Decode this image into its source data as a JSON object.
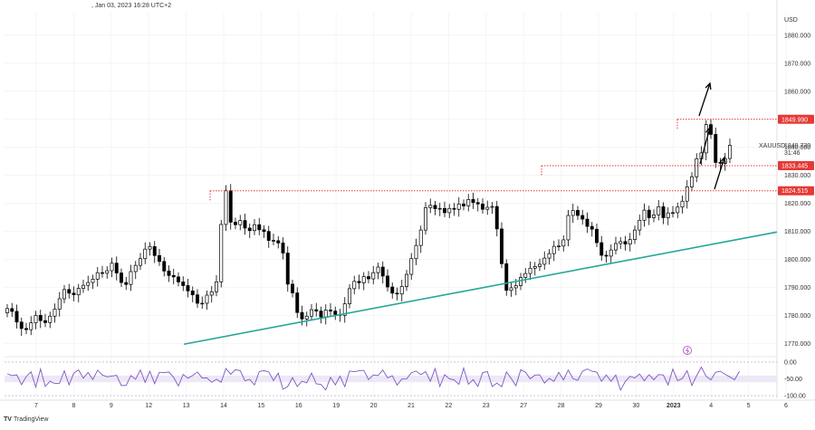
{
  "header": {
    "info": ", Jan 03, 2023 16:28 UTC+2"
  },
  "branding": {
    "logo_glyph": "TV",
    "name": "TradingView"
  },
  "colors": {
    "candle": "#000000",
    "resistance": "#e53935",
    "trendline": "#26a69a",
    "rsi_line": "#7e57c2",
    "rsi_band": "#ede7f6",
    "price_tag": "#e53935",
    "grid": "#f4f4f4"
  },
  "chart_data": [
    {
      "type": "candlestick",
      "symbol": "XAUUSD",
      "currency": "USD",
      "y_ticks": [
        "1880.000",
        "1870.000",
        "1860.000",
        "1850.000",
        "1840.000",
        "1830.000",
        "1820.000",
        "1810.000",
        "1800.000",
        "1790.000",
        "1780.000",
        "1770.000"
      ],
      "ylim": [
        1766,
        1888
      ],
      "x_ticks": [
        "7",
        "8",
        "9",
        "12",
        "13",
        "14",
        "15",
        "16",
        "19",
        "20",
        "21",
        "22",
        "23",
        "27",
        "28",
        "29",
        "30",
        "2023",
        "4",
        "5",
        "6"
      ],
      "current_price": "1840.720",
      "countdown": "31:46",
      "levels": [
        {
          "label": "1849.990",
          "value": 1849.99
        },
        {
          "label": "1833.445",
          "value": 1833.445
        },
        {
          "label": "1824.515",
          "value": 1824.515
        }
      ],
      "trendline": [
        {
          "x": "13",
          "y": 1769.8
        },
        {
          "x": "6",
          "y": 1809.8
        }
      ],
      "arrows": 3,
      "closes": [
        1782.5,
        1781.5,
        1777.7,
        1775.4,
        1775.0,
        1777.4,
        1780.1,
        1778.2,
        1777.5,
        1779.8,
        1782.3,
        1786.0,
        1789.3,
        1788.0,
        1787.4,
        1789.7,
        1790.8,
        1791.8,
        1793.0,
        1795.3,
        1795.1,
        1796.0,
        1798.7,
        1795.2,
        1791.8,
        1791.1,
        1795.7,
        1797.9,
        1800.3,
        1803.7,
        1804.6,
        1801.4,
        1799.3,
        1795.9,
        1794.3,
        1793.8,
        1792.0,
        1790.7,
        1788.8,
        1787.4,
        1784.4,
        1784.4,
        1787.3,
        1788.5,
        1792.0,
        1812.5,
        1824.5,
        1813.3,
        1812.4,
        1813.9,
        1811.2,
        1810.3,
        1812.4,
        1810.6,
        1810.0,
        1806.8,
        1806.7,
        1805.9,
        1802.3,
        1791.2,
        1788.1,
        1781.1,
        1778.8,
        1779.8,
        1782.1,
        1781.6,
        1779.5,
        1782.0,
        1781.6,
        1780.4,
        1780.1,
        1784.2,
        1789.6,
        1792.2,
        1791.7,
        1793.9,
        1793.1,
        1795.3,
        1797.3,
        1794.1,
        1790.2,
        1788.0,
        1787.7,
        1790.4,
        1794.7,
        1800.3,
        1805.0,
        1810.5,
        1818.5,
        1819.3,
        1818.1,
        1818.2,
        1816.7,
        1818.2,
        1817.9,
        1819.8,
        1819.1,
        1821.4,
        1820.3,
        1819.8,
        1817.9,
        1818.6,
        1818.9,
        1810.9,
        1798.5,
        1789.0,
        1789.9,
        1790.7,
        1793.6,
        1795.0,
        1796.9,
        1797.5,
        1798.3,
        1800.5,
        1802.1,
        1804.7,
        1804.8,
        1807.0,
        1815.7,
        1817.5,
        1815.7,
        1814.4,
        1811.8,
        1810.8,
        1806.0,
        1801.5,
        1801.2,
        1803.4,
        1805.7,
        1806.4,
        1805.5,
        1807.1,
        1810.5,
        1814.0,
        1817.6,
        1814.9,
        1815.9,
        1818.8,
        1814.9,
        1816.6,
        1816.7,
        1818.7,
        1820.8,
        1825.9,
        1829.5,
        1835.9,
        1838.0,
        1848.1,
        1844.6,
        1834.6,
        1834.3,
        1836.0,
        1840.7
      ],
      "rsi": {
        "ticks": [
          "0.00",
          "-50.00",
          "-100.00"
        ],
        "ylim": [
          -108,
          8
        ],
        "band": [
          -40,
          -60
        ],
        "values": [
          -34.8,
          -40.3,
          -38.0,
          -67.3,
          -43.2,
          -29.1,
          -74.7,
          -20.7,
          -72.5,
          -57.0,
          -64.1,
          -63.1,
          -26.0,
          -67.9,
          -32.9,
          -23.3,
          -48.2,
          -31.1,
          -51.9,
          -24.3,
          -38.7,
          -43.8,
          -41.6,
          -39.4,
          -69.9,
          -69.6,
          -40.4,
          -51.3,
          -23.5,
          -60.5,
          -27.3,
          -64.2,
          -30.3,
          -31.7,
          -29.5,
          -45.7,
          -71.2,
          -36.7,
          -48.1,
          -40.2,
          -29.6,
          -47.4,
          -47.1,
          -60.3,
          -51.1,
          -60.2,
          -19.0,
          -36.4,
          -22.8,
          -25.6,
          -55.7,
          -51.6,
          -68.2,
          -28.3,
          -25.4,
          -29.3,
          -55.0,
          -33.0,
          -81.0,
          -72.6,
          -46.5,
          -72.8,
          -57.1,
          -61.7,
          -32.8,
          -64.6,
          -66.6,
          -83.1,
          -45.4,
          -67.9,
          -42.0,
          -73.3,
          -26.6,
          -29.0,
          -26.0,
          -24.6,
          -52.5,
          -38.3,
          -40.1,
          -23.6,
          -47.2,
          -40.7,
          -68.7,
          -50.6,
          -50.2,
          -31.7,
          -26.6,
          -37.4,
          -28.6,
          -57.3,
          -19.2,
          -72.5,
          -37.5,
          -49.9,
          -53.1,
          -66.4,
          -17.9,
          -66.0,
          -52.3,
          -72.6,
          -31.3,
          -28.5,
          -72.6,
          -62.5,
          -73.7,
          -29.3,
          -48.7,
          -70.7,
          -22.9,
          -30.2,
          -49.8,
          -38.8,
          -38.0,
          -62.5,
          -48.6,
          -57.5,
          -30.4,
          -53.1,
          -23.9,
          -49.2,
          -54.6,
          -27.3,
          -20.6,
          -27.4,
          -30.0,
          -57.2,
          -38.6,
          -57.3,
          -38.5,
          -83.6,
          -57.7,
          -42.6,
          -47.3,
          -35.6,
          -55.6,
          -37.6,
          -53.0,
          -37.3,
          -38.2,
          -68.2,
          -20.9,
          -55.6,
          -49.1,
          -25.7,
          -69.7,
          -40.9,
          -15.2,
          -42.6,
          -52.9,
          -30.6,
          -27.2,
          -36.5,
          -44.4,
          -52.6,
          -27.8
        ]
      }
    }
  ]
}
